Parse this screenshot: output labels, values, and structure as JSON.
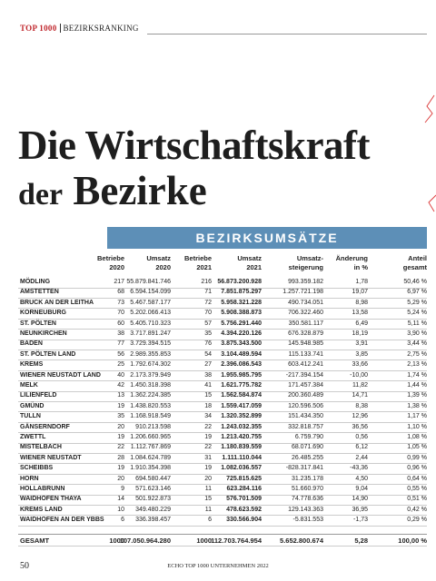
{
  "header": {
    "section": "TOP 1000",
    "topic": "BEZIRKSRANKING"
  },
  "title": {
    "line1": "Die Wirtschaftskraft",
    "line2a": "der",
    "line2b": "Bezirke"
  },
  "table": {
    "title": "BEZIRKSUMSÄTZE",
    "columns": [
      [
        "Betriebe",
        "2020"
      ],
      [
        "Umsatz",
        "2020"
      ],
      [
        "Betriebe",
        "2021"
      ],
      [
        "Umsatz",
        "2021"
      ],
      [
        "Umsatz-",
        "steigerung"
      ],
      [
        "Änderung",
        "in %"
      ],
      [
        "Anteil",
        "gesamt"
      ]
    ],
    "rows": [
      [
        "MÖDLING",
        "217",
        "55.879.841.746",
        "216",
        "56.873.200.928",
        "993.359.182",
        "1,78",
        "50,46 %"
      ],
      [
        "AMSTETTEN",
        "68",
        "6.594.154.099",
        "71",
        "7.851.875.297",
        "1.257.721.198",
        "19,07",
        "6,97 %"
      ],
      [
        "BRUCK AN DER LEITHA",
        "73",
        "5.467.587.177",
        "72",
        "5.958.321.228",
        "490.734.051",
        "8,98",
        "5,29 %"
      ],
      [
        "KORNEUBURG",
        "70",
        "5.202.066.413",
        "70",
        "5.908.388.873",
        "706.322.460",
        "13,58",
        "5,24 %"
      ],
      [
        "ST. PÖLTEN",
        "60",
        "5.405.710.323",
        "57",
        "5.756.291.440",
        "350.581.117",
        "6,49",
        "5,11 %"
      ],
      [
        "NEUNKIRCHEN",
        "38",
        "3.717.891.247",
        "35",
        "4.394.220.126",
        "676.328.879",
        "18,19",
        "3,90 %"
      ],
      [
        "BADEN",
        "77",
        "3.729.394.515",
        "76",
        "3.875.343.500",
        "145.948.985",
        "3,91",
        "3,44 %"
      ],
      [
        "ST. PÖLTEN LAND",
        "56",
        "2.989.355.853",
        "54",
        "3.104.489.594",
        "115.133.741",
        "3,85",
        "2,75 %"
      ],
      [
        "KREMS",
        "25",
        "1.792.674.302",
        "27",
        "2.396.086.543",
        "603.412.241",
        "33,66",
        "2,13 %"
      ],
      [
        "WIENER NEUSTADT LAND",
        "40",
        "2.173.379.949",
        "38",
        "1.955.985.795",
        "-217.394.154",
        "-10,00",
        "1,74 %"
      ],
      [
        "MELK",
        "42",
        "1.450.318.398",
        "41",
        "1.621.775.782",
        "171.457.384",
        "11,82",
        "1,44 %"
      ],
      [
        "LILIENFELD",
        "13",
        "1.362.224.385",
        "15",
        "1.562.584.874",
        "200.360.489",
        "14,71",
        "1,39 %"
      ],
      [
        "GMÜND",
        "19",
        "1.438.820.553",
        "18",
        "1.559.417.059",
        "120.596.506",
        "8,38",
        "1,38 %"
      ],
      [
        "TULLN",
        "35",
        "1.168.918.549",
        "34",
        "1.320.352.899",
        "151.434.350",
        "12,96",
        "1,17 %"
      ],
      [
        "GÄNSERNDORF",
        "20",
        "910.213.598",
        "22",
        "1.243.032.355",
        "332.818.757",
        "36,56",
        "1,10 %"
      ],
      [
        "ZWETTL",
        "19",
        "1.206.660.965",
        "19",
        "1.213.420.755",
        "6.759.790",
        "0,56",
        "1,08 %"
      ],
      [
        "MISTELBACH",
        "22",
        "1.112.767.869",
        "22",
        "1.180.839.559",
        "68.071.690",
        "6,12",
        "1,05 %"
      ],
      [
        "WIENER NEUSTADT",
        "28",
        "1.084.624.789",
        "31",
        "1.111.110.044",
        "26.485.255",
        "2,44",
        "0,99 %"
      ],
      [
        "SCHEIBBS",
        "19",
        "1.910.354.398",
        "19",
        "1.082.036.557",
        "-828.317.841",
        "-43,36",
        "0,96 %"
      ],
      [
        "HORN",
        "20",
        "694.580.447",
        "20",
        "725.815.625",
        "31.235.178",
        "4,50",
        "0,64 %"
      ],
      [
        "HOLLABRUNN",
        "9",
        "571.623.146",
        "11",
        "623.284.116",
        "51.660.970",
        "9,04",
        "0,55 %"
      ],
      [
        "WAIDHOFEN THAYA",
        "14",
        "501.922.873",
        "15",
        "576.701.509",
        "74.778.636",
        "14,90",
        "0,51 %"
      ],
      [
        "KREMS LAND",
        "10",
        "349.480.229",
        "11",
        "478.623.592",
        "129.143.363",
        "36,95",
        "0,42 %"
      ],
      [
        "WAIDHOFEN AN DER YBBS",
        "6",
        "336.398.457",
        "6",
        "330.566.904",
        "-5.831.553",
        "-1,73",
        "0,29 %"
      ]
    ],
    "total": [
      "GESAMT",
      "1000",
      "107.050.964.280",
      "1000",
      "112.703.764.954",
      "5.652.800.674",
      "5,28",
      "100,00 %"
    ]
  },
  "footer": {
    "page": "50",
    "publication": "ECHO TOP 1000 UNTERNEHMEN 2022"
  }
}
